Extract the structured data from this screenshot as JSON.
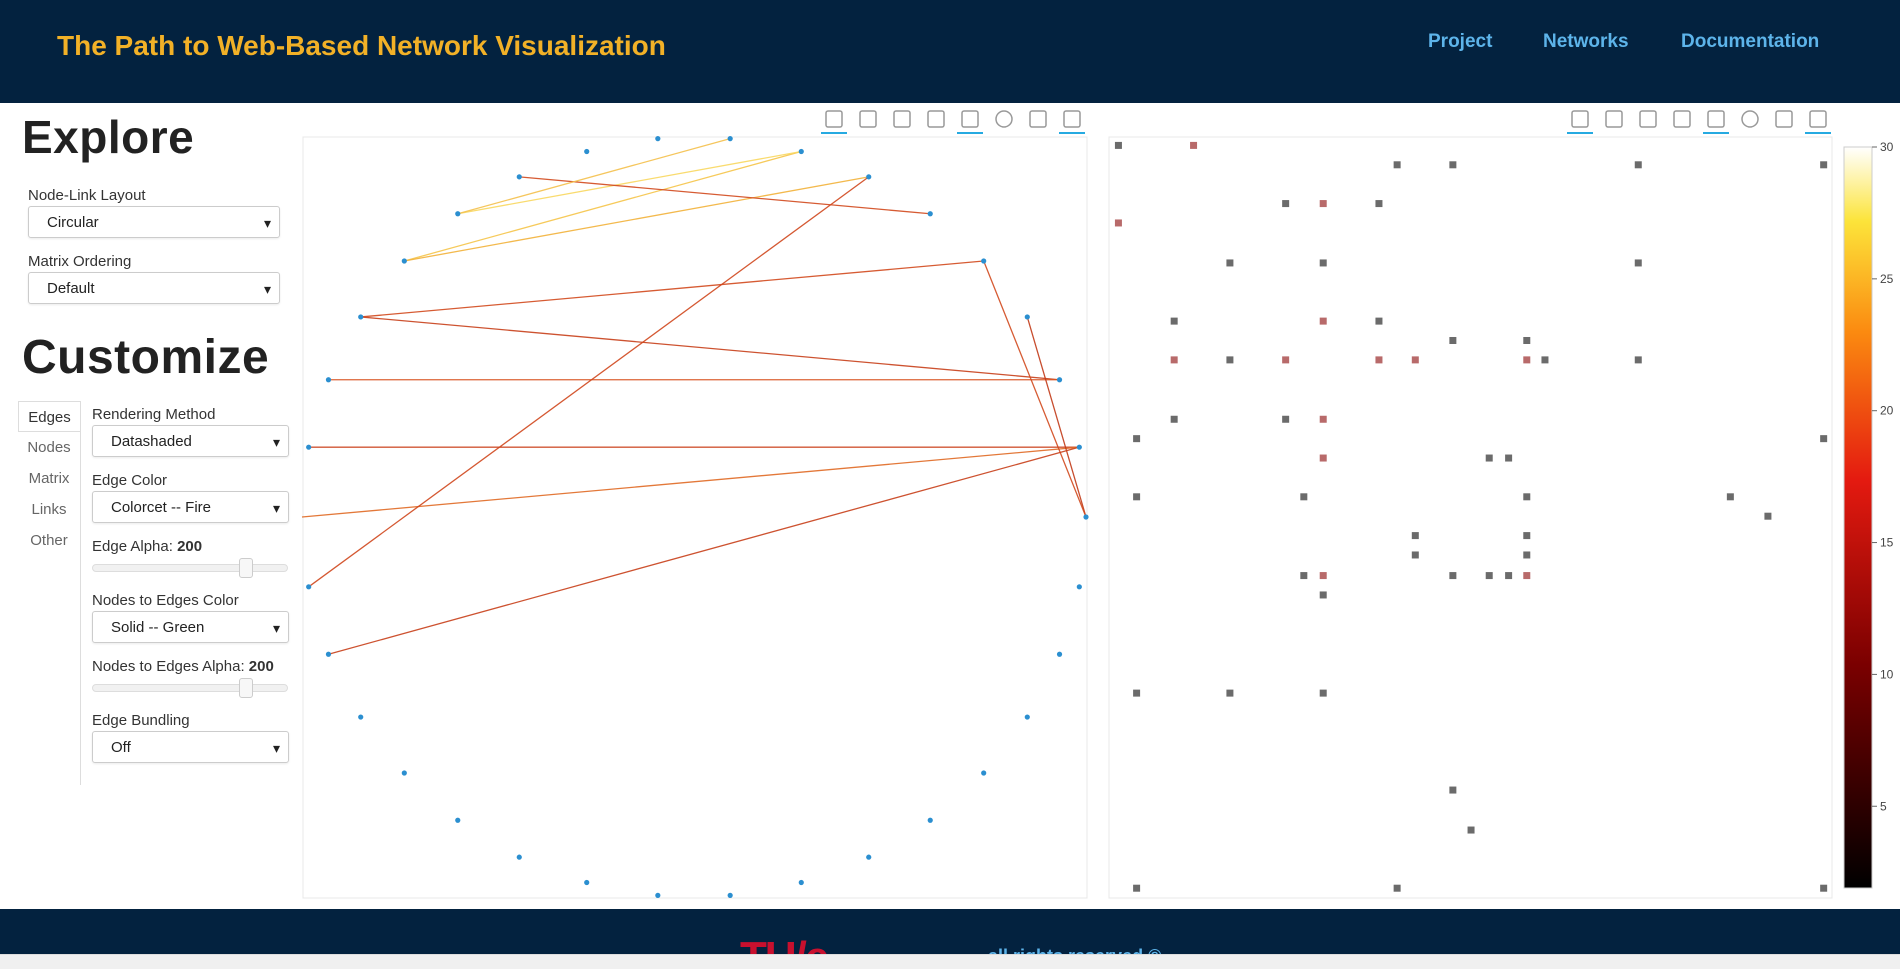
{
  "header": {
    "title": "The Path to Web-Based Network Visualization",
    "nav": [
      "Project",
      "Networks",
      "Documentation"
    ]
  },
  "sidebar": {
    "explore_heading": "Explore",
    "explore_fields": [
      {
        "label": "Node-Link Layout",
        "value": "Circular"
      },
      {
        "label": "Matrix Ordering",
        "value": "Default"
      }
    ],
    "customize_heading": "Customize",
    "tabs": [
      "Edges",
      "Nodes",
      "Matrix",
      "Links",
      "Other"
    ],
    "controls": [
      {
        "label": "Rendering Method",
        "value": "Datashaded"
      },
      {
        "label": "Edge Color",
        "value": "Colorcet -- Fire"
      },
      {
        "label": "Edge Alpha:",
        "value": 200
      },
      {
        "label": "Nodes to Edges Color",
        "value": "Solid -- Green"
      },
      {
        "label": "Nodes to Edges Alpha:",
        "value": 200
      },
      {
        "label": "Edge Bundling",
        "value": "Off"
      }
    ]
  },
  "colorbar": {
    "range": [
      1.9,
      30
    ],
    "ticks": [
      5,
      10,
      15,
      20,
      25,
      30
    ]
  },
  "footer": {
    "text": "all rights reserved ©"
  }
}
